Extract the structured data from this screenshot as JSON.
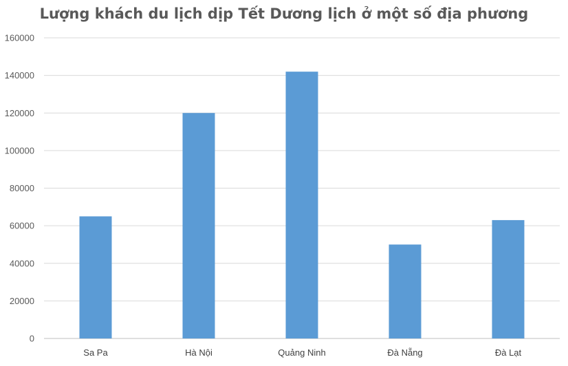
{
  "chart_data": {
    "type": "bar",
    "title": "Lượng khách du lịch dịp Tết Dương lịch ở một số địa phương",
    "xlabel": "",
    "ylabel": "",
    "categories": [
      "Sa Pa",
      "Hà Nội",
      "Quảng Ninh",
      "Đà Nẵng",
      "Đà Lạt"
    ],
    "values": [
      65000,
      120000,
      142000,
      50000,
      63000
    ],
    "ylim": [
      0,
      160000
    ],
    "yticks": [
      0,
      20000,
      40000,
      60000,
      80000,
      100000,
      120000,
      140000,
      160000
    ],
    "grid": true,
    "legend": "none",
    "bar_color": "#5B9BD5",
    "grid_color": "#D9D9D9"
  }
}
